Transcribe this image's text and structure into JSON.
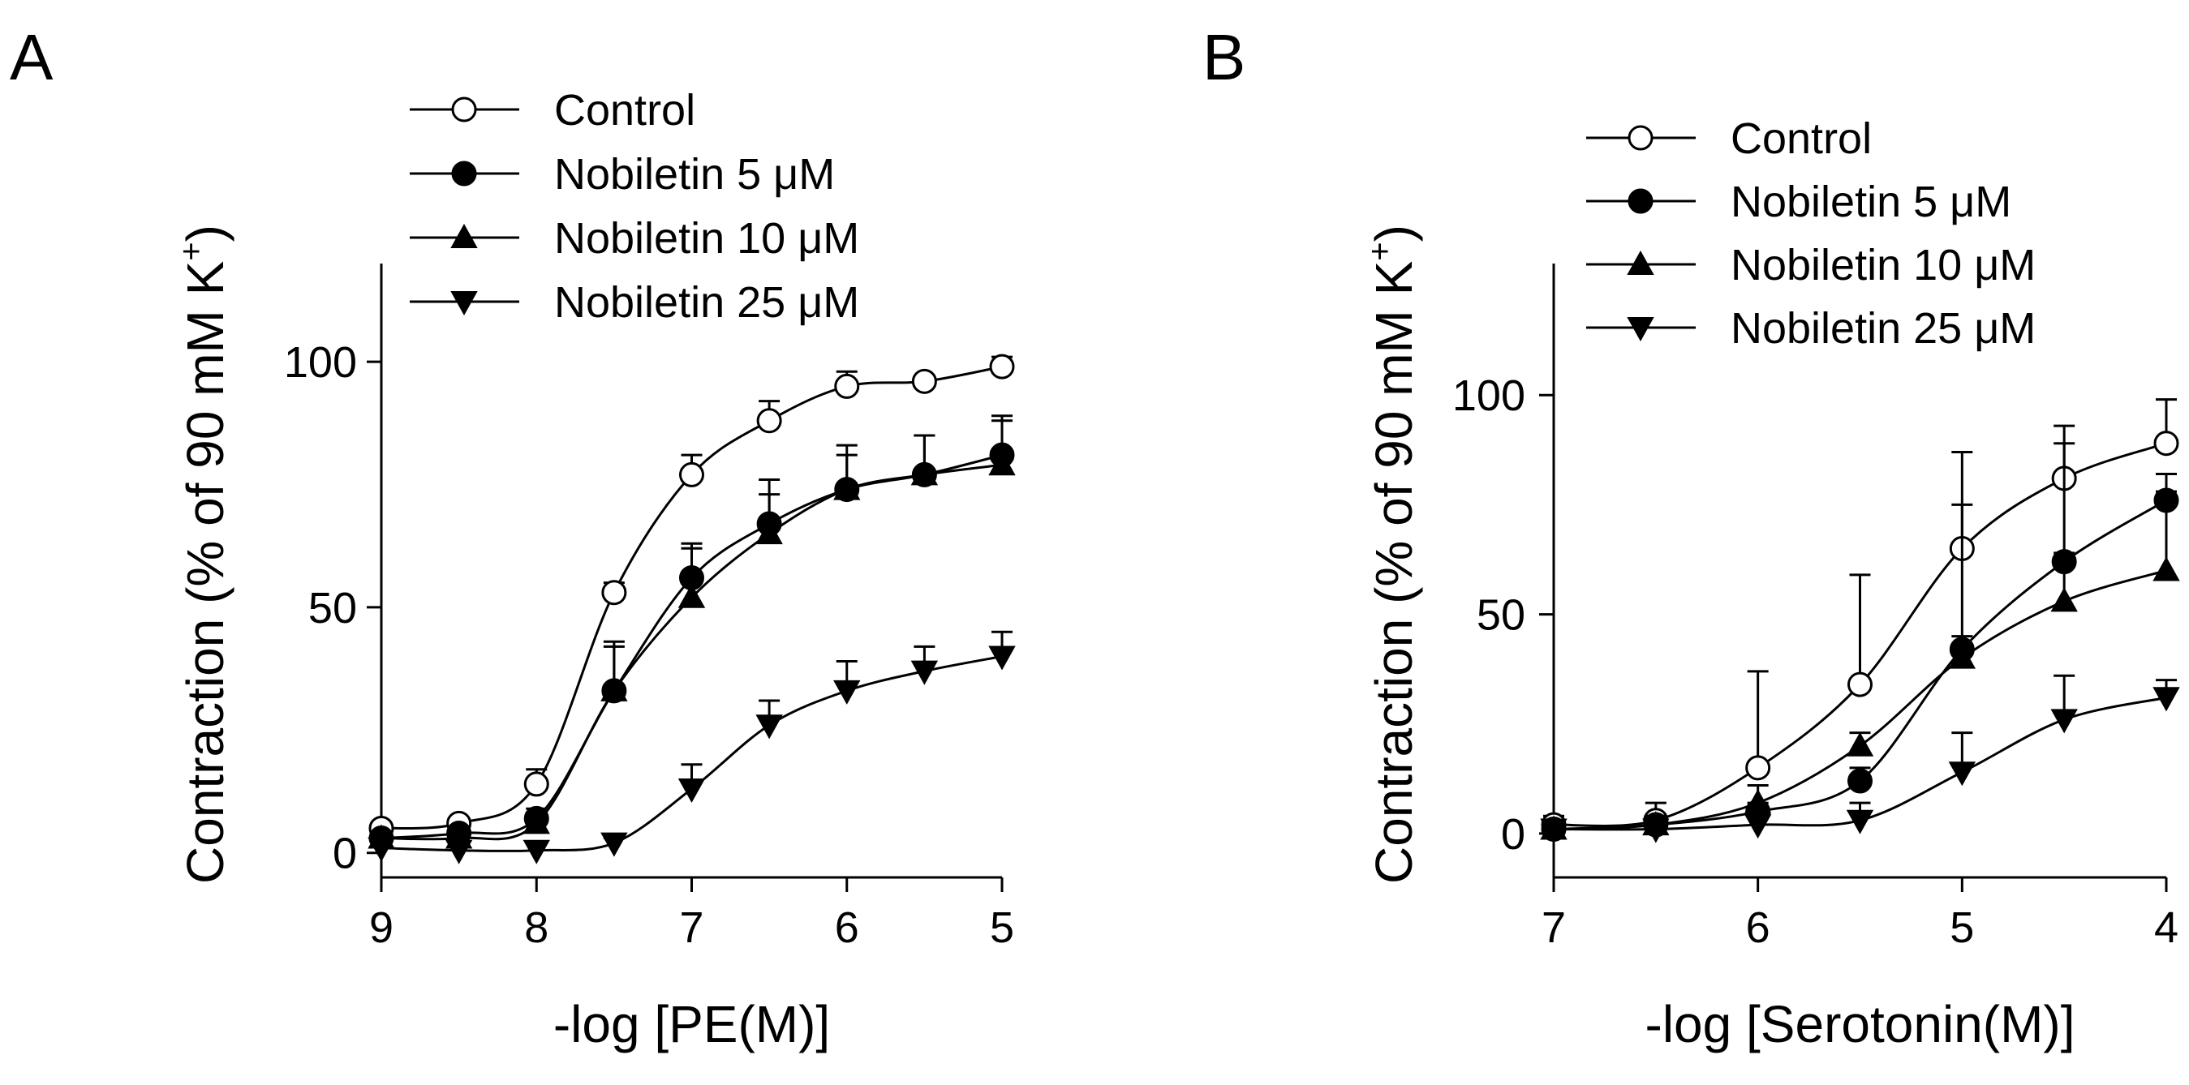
{
  "chart_data": [
    {
      "type": "line",
      "panel": "A",
      "xlabel": "-log [PE(M)]",
      "ylabel": "Contraction (% of 90 mM K",
      "ylabel_sup": "+",
      "ylabel_close": ")",
      "xlim": [
        9,
        5
      ],
      "x_reversed": true,
      "ylim": [
        -5,
        120
      ],
      "xticks": [
        9,
        8,
        7,
        6,
        5
      ],
      "yticks": [
        0,
        50,
        100
      ],
      "x": [
        9,
        8.5,
        8,
        7.5,
        7,
        6.5,
        6,
        5.5,
        5
      ],
      "legend_position": "top",
      "grid": false,
      "series": [
        {
          "name": "Control",
          "marker": "circle-open",
          "values": [
            5,
            6,
            14,
            53,
            77,
            88,
            95,
            96,
            99
          ],
          "errors": [
            1,
            1,
            3,
            2,
            4,
            4,
            3,
            1,
            2
          ]
        },
        {
          "name": "Nobiletin 5 μM",
          "marker": "circle-filled",
          "values": [
            3,
            4,
            7,
            33,
            56,
            67,
            74,
            77,
            81
          ],
          "errors": [
            1,
            1,
            2,
            9,
            6,
            6,
            7,
            8,
            8
          ]
        },
        {
          "name": "Nobiletin 10 μM",
          "marker": "triangle-up",
          "values": [
            3,
            3,
            6,
            33,
            52,
            65,
            74,
            77,
            79
          ],
          "errors": [
            1,
            1,
            2,
            10,
            11,
            11,
            9,
            8,
            9
          ]
        },
        {
          "name": "Nobiletin 25 μM",
          "marker": "triangle-down",
          "values": [
            1,
            0.5,
            0.5,
            2,
            13,
            26,
            33,
            37,
            40
          ],
          "errors": [
            0.5,
            0.5,
            0.5,
            1,
            5,
            5,
            6,
            5,
            5
          ]
        }
      ]
    },
    {
      "type": "line",
      "panel": "B",
      "xlabel": "-log [Serotonin(M)]",
      "ylabel": "Contraction (% of 90 mM K",
      "ylabel_sup": "+",
      "ylabel_close": ")",
      "xlim": [
        7,
        4
      ],
      "x_reversed": true,
      "ylim": [
        -10,
        130
      ],
      "xticks": [
        7,
        6,
        5,
        4
      ],
      "yticks": [
        0,
        50,
        100
      ],
      "x": [
        7,
        6.5,
        6,
        5.5,
        5,
        4.5,
        4
      ],
      "legend_position": "top",
      "grid": false,
      "series": [
        {
          "name": "Control",
          "marker": "circle-open",
          "values": [
            2,
            3,
            15,
            34,
            65,
            81,
            89
          ],
          "errors": [
            2,
            4,
            22,
            25,
            22,
            12,
            10
          ]
        },
        {
          "name": "Nobiletin 5 μM",
          "marker": "circle-filled",
          "values": [
            1,
            2,
            5,
            12,
            42,
            62,
            76
          ],
          "errors": [
            1,
            2,
            2,
            3,
            3,
            2,
            2
          ]
        },
        {
          "name": "Nobiletin 10 μM",
          "marker": "triangle-up",
          "values": [
            1,
            2,
            7,
            20,
            40,
            53,
            60
          ],
          "errors": [
            1,
            2,
            4,
            3,
            35,
            36,
            22
          ]
        },
        {
          "name": "Nobiletin 25 μM",
          "marker": "triangle-down",
          "values": [
            1,
            1,
            2,
            3,
            14,
            26,
            31
          ],
          "errors": [
            1,
            1,
            3,
            4,
            9,
            10,
            4
          ]
        }
      ]
    }
  ]
}
